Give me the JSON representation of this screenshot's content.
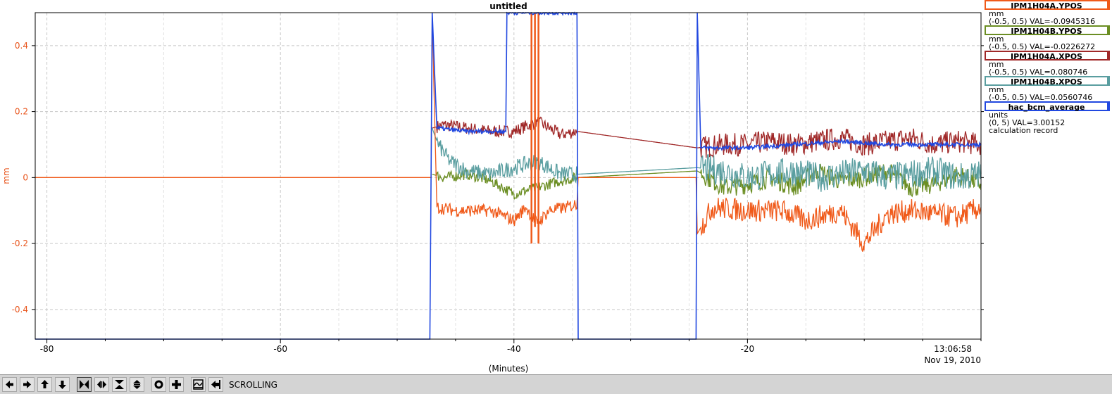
{
  "chart_data": {
    "type": "line",
    "title": "untitled",
    "xlabel": "(Minutes)",
    "ylabel": "mm",
    "xlim": [
      -81,
      0
    ],
    "ylim": [
      -0.49,
      0.5
    ],
    "x_ticks": [
      -80,
      -60,
      -40,
      -20
    ],
    "y_ticks": [
      0.4,
      0.2,
      0,
      -0.2,
      -0.4
    ],
    "y_tick_labels": [
      "0.4",
      "0.2",
      "0",
      "-0.2",
      "-0.4"
    ],
    "time_label": "13:06:58",
    "date_label": "Nov 19, 2010",
    "grid": true,
    "y_axis_color": "#e8541b",
    "series": [
      {
        "name": "IPM1H04A.YPOS",
        "color": "#f05a1a",
        "x": [
          -81,
          -47.1,
          -47.0,
          -46.6,
          -45,
          -42,
          -40,
          -39,
          -38,
          -37,
          -35.5,
          -34.6,
          -34.5,
          -24.4,
          -24.3,
          -23,
          -20,
          -17,
          -15,
          -12,
          -10,
          -8,
          -6,
          -4,
          -2,
          0
        ],
        "y": [
          0,
          0,
          0.49,
          -0.09,
          -0.1,
          -0.1,
          -0.13,
          -0.09,
          -0.14,
          -0.1,
          -0.09,
          -0.08,
          0,
          0,
          -0.17,
          -0.09,
          -0.1,
          -0.1,
          -0.13,
          -0.1,
          -0.2,
          -0.11,
          -0.1,
          -0.11,
          -0.12,
          -0.09
        ],
        "spikes": [
          [
            -38.5,
            -0.2,
            0.5
          ],
          [
            -38.2,
            -0.15,
            0.5
          ],
          [
            -37.9,
            -0.2,
            0.5
          ]
        ]
      },
      {
        "name": "IPM1H04B.YPOS",
        "color": "#6b8e23",
        "x": [
          -47,
          -46,
          -44,
          -42,
          -40,
          -38,
          -36,
          -34.6,
          -24.3,
          -22,
          -20,
          -18,
          -16,
          -14,
          -12,
          -10,
          -8,
          -6,
          -4,
          -2,
          0
        ],
        "y": [
          0.01,
          0,
          0.01,
          -0.01,
          -0.05,
          -0.03,
          -0.01,
          0,
          0.02,
          -0.03,
          -0.02,
          0,
          -0.03,
          0.02,
          -0.01,
          0,
          0.02,
          -0.03,
          -0.02,
          0.01,
          -0.02
        ]
      },
      {
        "name": "IPM1H04A.XPOS",
        "color": "#a02828",
        "x": [
          -47,
          -46,
          -44,
          -42,
          -40,
          -38,
          -36,
          -34.6,
          -24.3,
          -22,
          -20,
          -18,
          -16,
          -14,
          -12,
          -10,
          -8,
          -6,
          -4,
          -2,
          0
        ],
        "y": [
          0.15,
          0.16,
          0.15,
          0.14,
          0.14,
          0.17,
          0.13,
          0.14,
          0.09,
          0.1,
          0.1,
          0.11,
          0.1,
          0.11,
          0.12,
          0.1,
          0.11,
          0.12,
          0.1,
          0.11,
          0.1
        ]
      },
      {
        "name": "IPM1H04B.XPOS",
        "color": "#5a9ea0",
        "x": [
          -47,
          -46.5,
          -45.5,
          -44,
          -42,
          -40,
          -38,
          -36,
          -34.6,
          -24.3,
          -22,
          -20,
          -18,
          -16,
          -14,
          -12,
          -10,
          -8,
          -6,
          -4,
          -2,
          0
        ],
        "y": [
          0.15,
          0.1,
          0.05,
          0.02,
          0.01,
          0.03,
          0.05,
          0.01,
          0.01,
          0.03,
          0.02,
          0,
          0.01,
          0.02,
          0,
          0.01,
          0.02,
          0,
          0.01,
          0.02,
          0,
          0.01
        ]
      },
      {
        "name": "hac_bcm_average",
        "color": "#2148e0",
        "x": [
          -81,
          -47.2,
          -47.0,
          -46.6,
          -44,
          -42,
          -40.7,
          -40.6,
          -34.6,
          -34.5,
          -24.4,
          -24.3,
          -24.0,
          -23,
          -20,
          -16,
          -12,
          -8,
          -4,
          0
        ],
        "y": [
          -0.49,
          -0.49,
          0.5,
          0.15,
          0.14,
          0.14,
          0.14,
          0.5,
          0.5,
          -0.49,
          -0.49,
          0.5,
          0.09,
          0.09,
          0.09,
          0.1,
          0.11,
          0.1,
          0.1,
          0.1
        ]
      }
    ]
  },
  "legend": [
    {
      "name": "IPM1H04A.YPOS",
      "unit": "mm",
      "range_val": "(-0.5, 0.5) VAL=-0.0945316",
      "color": "#f05a1a"
    },
    {
      "name": "IPM1H04B.YPOS",
      "unit": "mm",
      "range_val": "(-0.5, 0.5) VAL=-0.0226272",
      "color": "#6b8e23"
    },
    {
      "name": "IPM1H04A.XPOS",
      "unit": "mm",
      "range_val": "(-0.5, 0.5) VAL=0.080746",
      "color": "#a02828"
    },
    {
      "name": "IPM1H04B.XPOS",
      "unit": "mm",
      "range_val": "(-0.5, 0.5) VAL=0.0560746",
      "color": "#5a9ea0"
    },
    {
      "name": "hac_bcm_average",
      "unit": "units",
      "range_val": "(0, 5) VAL=3.00152",
      "color": "#2148e0",
      "extra": "calculation record"
    }
  ],
  "toolbar": {
    "buttons": [
      {
        "icon": "arrow-left-icon",
        "pressed": false
      },
      {
        "icon": "arrow-right-icon",
        "pressed": false
      },
      {
        "icon": "arrow-up-icon",
        "pressed": false
      },
      {
        "icon": "arrow-down-icon",
        "pressed": false
      },
      {
        "icon": "zoom-x-in-icon",
        "pressed": true
      },
      {
        "icon": "zoom-x-out-icon",
        "pressed": false
      },
      {
        "icon": "zoom-y-in-icon",
        "pressed": false
      },
      {
        "icon": "zoom-y-out-icon",
        "pressed": false
      },
      {
        "icon": "zoom-box-icon",
        "pressed": false
      },
      {
        "icon": "plus-icon",
        "pressed": false
      },
      {
        "icon": "autoscale-icon",
        "pressed": false
      },
      {
        "icon": "jump-end-icon",
        "pressed": false
      }
    ],
    "mode_label": "SCROLLING"
  }
}
